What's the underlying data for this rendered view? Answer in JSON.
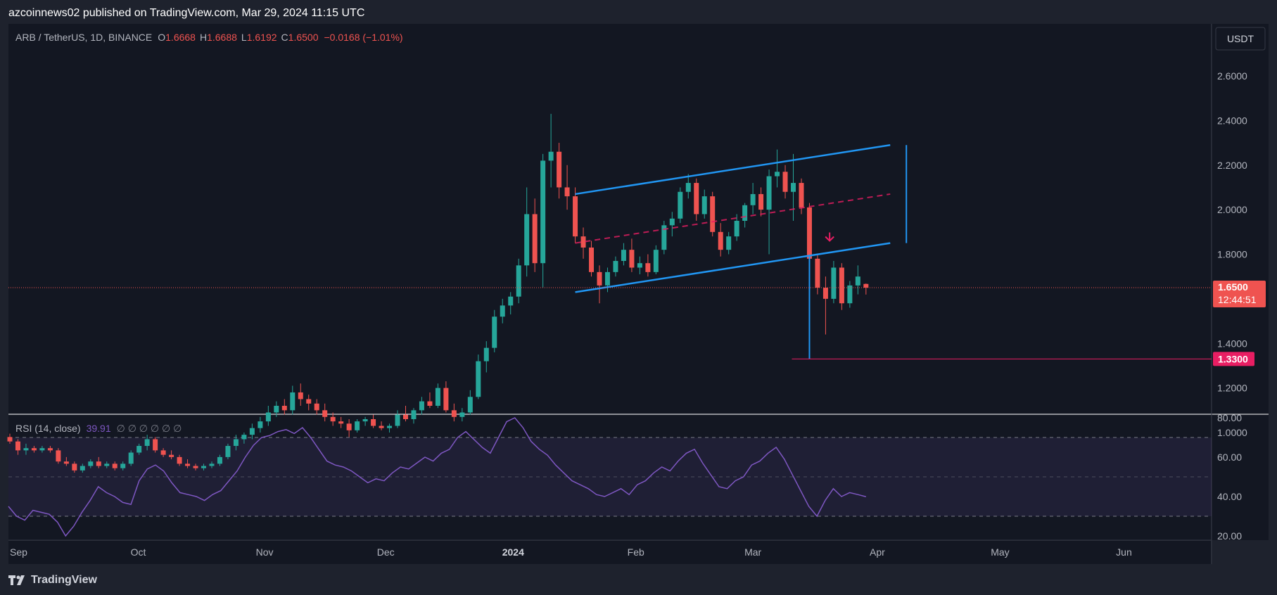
{
  "publisher_line": "azcoinnews02 published on TradingView.com, Mar 29, 2024 11:15 UTC",
  "footer_brand": "TradingView",
  "currency_button": "USDT",
  "legend": {
    "symbol": "ARB / TetherUS, 1D, BINANCE",
    "o_label": "O",
    "o_value": "1.6668",
    "h_label": "H",
    "h_value": "1.6688",
    "l_label": "L",
    "l_value": "1.6192",
    "c_label": "C",
    "c_value": "1.6500",
    "change": "−0.0168 (−1.01%)"
  },
  "price_badge": {
    "price": "1.6500",
    "countdown": "12:44:51"
  },
  "target_badge": "1.3300",
  "rsi_legend": {
    "label": "RSI (14, close)",
    "value": "39.91",
    "placeholders": "∅  ∅  ∅  ∅  ∅  ∅"
  },
  "colors": {
    "background": "#131722",
    "frame": "#1e222d",
    "up": "#26a69a",
    "down": "#ef5350",
    "channel": "#2196f3",
    "mid_line": "#e91e63",
    "target": "#e91e63",
    "rsi_line": "#7e57c2",
    "rsi_band": "#7e57c2"
  },
  "chart_data": [
    {
      "type": "candlestick",
      "title": "ARB / TetherUS, 1D, BINANCE",
      "x_ticks": [
        "Sep",
        "Oct",
        "Nov",
        "Dec",
        "2024",
        "Feb",
        "Mar",
        "Apr",
        "May",
        "Jun"
      ],
      "y_ticks": [
        "2.6000",
        "2.4000",
        "2.2000",
        "2.0000",
        "1.8000",
        "1.4000",
        "1.2000",
        "1.0000"
      ],
      "ylim": [
        0.85,
        2.72
      ],
      "current_price": 1.65,
      "ohlc": [
        {
          "date": "2023-08-30",
          "o": 0.98,
          "h": 0.995,
          "l": 0.95,
          "c": 0.96
        },
        {
          "date": "2023-09-01",
          "o": 0.96,
          "h": 0.97,
          "l": 0.9,
          "c": 0.92
        },
        {
          "date": "2023-09-03",
          "o": 0.92,
          "h": 0.95,
          "l": 0.9,
          "c": 0.93
        },
        {
          "date": "2023-09-05",
          "o": 0.93,
          "h": 0.94,
          "l": 0.91,
          "c": 0.92
        },
        {
          "date": "2023-09-07",
          "o": 0.92,
          "h": 0.94,
          "l": 0.91,
          "c": 0.93
        },
        {
          "date": "2023-09-09",
          "o": 0.93,
          "h": 0.94,
          "l": 0.91,
          "c": 0.92
        },
        {
          "date": "2023-09-11",
          "o": 0.92,
          "h": 0.93,
          "l": 0.86,
          "c": 0.87
        },
        {
          "date": "2023-09-13",
          "o": 0.87,
          "h": 0.89,
          "l": 0.85,
          "c": 0.86
        },
        {
          "date": "2023-09-15",
          "o": 0.86,
          "h": 0.87,
          "l": 0.82,
          "c": 0.83
        },
        {
          "date": "2023-09-17",
          "o": 0.83,
          "h": 0.86,
          "l": 0.82,
          "c": 0.85
        },
        {
          "date": "2023-09-19",
          "o": 0.85,
          "h": 0.88,
          "l": 0.84,
          "c": 0.87
        },
        {
          "date": "2023-09-21",
          "o": 0.87,
          "h": 0.89,
          "l": 0.84,
          "c": 0.85
        },
        {
          "date": "2023-09-23",
          "o": 0.85,
          "h": 0.87,
          "l": 0.84,
          "c": 0.86
        },
        {
          "date": "2023-09-25",
          "o": 0.86,
          "h": 0.87,
          "l": 0.83,
          "c": 0.84
        },
        {
          "date": "2023-09-27",
          "o": 0.84,
          "h": 0.87,
          "l": 0.83,
          "c": 0.86
        },
        {
          "date": "2023-09-29",
          "o": 0.86,
          "h": 0.92,
          "l": 0.85,
          "c": 0.91
        },
        {
          "date": "2023-10-01",
          "o": 0.91,
          "h": 0.95,
          "l": 0.9,
          "c": 0.94
        },
        {
          "date": "2023-10-03",
          "o": 0.94,
          "h": 0.99,
          "l": 0.92,
          "c": 0.97
        },
        {
          "date": "2023-10-05",
          "o": 0.97,
          "h": 0.98,
          "l": 0.91,
          "c": 0.92
        },
        {
          "date": "2023-10-07",
          "o": 0.92,
          "h": 0.93,
          "l": 0.89,
          "c": 0.9
        },
        {
          "date": "2023-10-09",
          "o": 0.9,
          "h": 0.92,
          "l": 0.88,
          "c": 0.89
        },
        {
          "date": "2023-10-11",
          "o": 0.89,
          "h": 0.9,
          "l": 0.85,
          "c": 0.86
        },
        {
          "date": "2023-10-13",
          "o": 0.86,
          "h": 0.88,
          "l": 0.84,
          "c": 0.85
        },
        {
          "date": "2023-10-15",
          "o": 0.85,
          "h": 0.86,
          "l": 0.83,
          "c": 0.84
        },
        {
          "date": "2023-10-17",
          "o": 0.84,
          "h": 0.86,
          "l": 0.83,
          "c": 0.85
        },
        {
          "date": "2023-10-19",
          "o": 0.85,
          "h": 0.87,
          "l": 0.84,
          "c": 0.86
        },
        {
          "date": "2023-10-21",
          "o": 0.86,
          "h": 0.9,
          "l": 0.85,
          "c": 0.89
        },
        {
          "date": "2023-10-23",
          "o": 0.89,
          "h": 0.95,
          "l": 0.88,
          "c": 0.94
        },
        {
          "date": "2023-10-25",
          "o": 0.94,
          "h": 0.99,
          "l": 0.92,
          "c": 0.97
        },
        {
          "date": "2023-10-27",
          "o": 0.97,
          "h": 1.0,
          "l": 0.95,
          "c": 0.99
        },
        {
          "date": "2023-10-29",
          "o": 0.99,
          "h": 1.04,
          "l": 0.97,
          "c": 1.02
        },
        {
          "date": "2023-10-31",
          "o": 1.02,
          "h": 1.07,
          "l": 1.0,
          "c": 1.05
        },
        {
          "date": "2023-11-02",
          "o": 1.05,
          "h": 1.12,
          "l": 1.03,
          "c": 1.09
        },
        {
          "date": "2023-11-04",
          "o": 1.09,
          "h": 1.14,
          "l": 1.07,
          "c": 1.12
        },
        {
          "date": "2023-11-06",
          "o": 1.12,
          "h": 1.15,
          "l": 1.08,
          "c": 1.1
        },
        {
          "date": "2023-11-08",
          "o": 1.1,
          "h": 1.21,
          "l": 1.08,
          "c": 1.18
        },
        {
          "date": "2023-11-10",
          "o": 1.18,
          "h": 1.22,
          "l": 1.12,
          "c": 1.15
        },
        {
          "date": "2023-11-12",
          "o": 1.15,
          "h": 1.17,
          "l": 1.1,
          "c": 1.13
        },
        {
          "date": "2023-11-14",
          "o": 1.13,
          "h": 1.15,
          "l": 1.08,
          "c": 1.1
        },
        {
          "date": "2023-11-16",
          "o": 1.1,
          "h": 1.13,
          "l": 1.05,
          "c": 1.07
        },
        {
          "date": "2023-11-18",
          "o": 1.07,
          "h": 1.09,
          "l": 1.03,
          "c": 1.05
        },
        {
          "date": "2023-11-20",
          "o": 1.05,
          "h": 1.07,
          "l": 1.02,
          "c": 1.04
        },
        {
          "date": "2023-11-22",
          "o": 1.04,
          "h": 1.06,
          "l": 0.98,
          "c": 1.01
        },
        {
          "date": "2023-11-24",
          "o": 1.01,
          "h": 1.06,
          "l": 1.0,
          "c": 1.05
        },
        {
          "date": "2023-11-26",
          "o": 1.05,
          "h": 1.07,
          "l": 1.03,
          "c": 1.06
        },
        {
          "date": "2023-11-28",
          "o": 1.06,
          "h": 1.08,
          "l": 1.02,
          "c": 1.03
        },
        {
          "date": "2023-11-30",
          "o": 1.03,
          "h": 1.05,
          "l": 1.01,
          "c": 1.02
        },
        {
          "date": "2023-12-02",
          "o": 1.02,
          "h": 1.04,
          "l": 1.0,
          "c": 1.03
        },
        {
          "date": "2023-12-04",
          "o": 1.03,
          "h": 1.1,
          "l": 1.02,
          "c": 1.08
        },
        {
          "date": "2023-12-06",
          "o": 1.08,
          "h": 1.12,
          "l": 1.05,
          "c": 1.06
        },
        {
          "date": "2023-12-08",
          "o": 1.06,
          "h": 1.11,
          "l": 1.04,
          "c": 1.1
        },
        {
          "date": "2023-12-10",
          "o": 1.1,
          "h": 1.16,
          "l": 1.08,
          "c": 1.14
        },
        {
          "date": "2023-12-12",
          "o": 1.14,
          "h": 1.18,
          "l": 1.11,
          "c": 1.12
        },
        {
          "date": "2023-12-14",
          "o": 1.12,
          "h": 1.22,
          "l": 1.11,
          "c": 1.2
        },
        {
          "date": "2023-12-16",
          "o": 1.2,
          "h": 1.23,
          "l": 1.09,
          "c": 1.1
        },
        {
          "date": "2023-12-18",
          "o": 1.1,
          "h": 1.13,
          "l": 1.05,
          "c": 1.07
        },
        {
          "date": "2023-12-20",
          "o": 1.07,
          "h": 1.11,
          "l": 1.05,
          "c": 1.09
        },
        {
          "date": "2023-12-22",
          "o": 1.09,
          "h": 1.19,
          "l": 1.08,
          "c": 1.16
        },
        {
          "date": "2023-12-24",
          "o": 1.16,
          "h": 1.35,
          "l": 1.15,
          "c": 1.32
        },
        {
          "date": "2023-12-26",
          "o": 1.32,
          "h": 1.41,
          "l": 1.27,
          "c": 1.38
        },
        {
          "date": "2023-12-28",
          "o": 1.38,
          "h": 1.55,
          "l": 1.36,
          "c": 1.52
        },
        {
          "date": "2023-12-30",
          "o": 1.52,
          "h": 1.6,
          "l": 1.49,
          "c": 1.57
        },
        {
          "date": "2024-01-01",
          "o": 1.57,
          "h": 1.63,
          "l": 1.53,
          "c": 1.61
        },
        {
          "date": "2024-01-03",
          "o": 1.61,
          "h": 1.78,
          "l": 1.58,
          "c": 1.75
        },
        {
          "date": "2024-01-05",
          "o": 1.75,
          "h": 2.1,
          "l": 1.7,
          "c": 1.98
        },
        {
          "date": "2024-01-07",
          "o": 1.98,
          "h": 2.05,
          "l": 1.72,
          "c": 1.76
        },
        {
          "date": "2024-01-09",
          "o": 1.76,
          "h": 2.25,
          "l": 1.65,
          "c": 2.22
        },
        {
          "date": "2024-01-11",
          "o": 2.22,
          "h": 2.43,
          "l": 2.1,
          "c": 2.26
        },
        {
          "date": "2024-01-13",
          "o": 2.26,
          "h": 2.3,
          "l": 2.05,
          "c": 2.1
        },
        {
          "date": "2024-01-15",
          "o": 2.1,
          "h": 2.2,
          "l": 2.0,
          "c": 2.06
        },
        {
          "date": "2024-01-17",
          "o": 2.06,
          "h": 2.1,
          "l": 1.85,
          "c": 1.88
        },
        {
          "date": "2024-01-19",
          "o": 1.88,
          "h": 1.92,
          "l": 1.78,
          "c": 1.83
        },
        {
          "date": "2024-01-21",
          "o": 1.83,
          "h": 1.86,
          "l": 1.7,
          "c": 1.72
        },
        {
          "date": "2024-01-23",
          "o": 1.72,
          "h": 1.75,
          "l": 1.58,
          "c": 1.66
        },
        {
          "date": "2024-01-25",
          "o": 1.66,
          "h": 1.74,
          "l": 1.63,
          "c": 1.72
        },
        {
          "date": "2024-01-27",
          "o": 1.72,
          "h": 1.79,
          "l": 1.7,
          "c": 1.77
        },
        {
          "date": "2024-01-29",
          "o": 1.77,
          "h": 1.85,
          "l": 1.75,
          "c": 1.82
        },
        {
          "date": "2024-01-31",
          "o": 1.82,
          "h": 1.87,
          "l": 1.72,
          "c": 1.74
        },
        {
          "date": "2024-02-02",
          "o": 1.74,
          "h": 1.79,
          "l": 1.71,
          "c": 1.76
        },
        {
          "date": "2024-02-04",
          "o": 1.76,
          "h": 1.8,
          "l": 1.7,
          "c": 1.72
        },
        {
          "date": "2024-02-06",
          "o": 1.72,
          "h": 1.84,
          "l": 1.71,
          "c": 1.82
        },
        {
          "date": "2024-02-08",
          "o": 1.82,
          "h": 1.95,
          "l": 1.8,
          "c": 1.93
        },
        {
          "date": "2024-02-10",
          "o": 1.93,
          "h": 1.99,
          "l": 1.88,
          "c": 1.96
        },
        {
          "date": "2024-02-12",
          "o": 1.96,
          "h": 2.1,
          "l": 1.94,
          "c": 2.08
        },
        {
          "date": "2024-02-14",
          "o": 2.08,
          "h": 2.16,
          "l": 2.05,
          "c": 2.12
        },
        {
          "date": "2024-02-16",
          "o": 2.12,
          "h": 2.14,
          "l": 1.95,
          "c": 1.98
        },
        {
          "date": "2024-02-18",
          "o": 1.98,
          "h": 2.09,
          "l": 1.96,
          "c": 2.06
        },
        {
          "date": "2024-02-20",
          "o": 2.06,
          "h": 2.08,
          "l": 1.88,
          "c": 1.9
        },
        {
          "date": "2024-02-22",
          "o": 1.9,
          "h": 1.94,
          "l": 1.79,
          "c": 1.82
        },
        {
          "date": "2024-02-24",
          "o": 1.82,
          "h": 1.9,
          "l": 1.8,
          "c": 1.88
        },
        {
          "date": "2024-02-26",
          "o": 1.88,
          "h": 1.98,
          "l": 1.86,
          "c": 1.95
        },
        {
          "date": "2024-02-28",
          "o": 1.95,
          "h": 2.03,
          "l": 1.92,
          "c": 2.02
        },
        {
          "date": "2024-03-01",
          "o": 2.02,
          "h": 2.12,
          "l": 1.98,
          "c": 2.07
        },
        {
          "date": "2024-03-03",
          "o": 2.07,
          "h": 2.1,
          "l": 1.97,
          "c": 2.0
        },
        {
          "date": "2024-03-05",
          "o": 2.0,
          "h": 2.18,
          "l": 1.8,
          "c": 2.15
        },
        {
          "date": "2024-03-07",
          "o": 2.15,
          "h": 2.27,
          "l": 2.1,
          "c": 2.17
        },
        {
          "date": "2024-03-09",
          "o": 2.17,
          "h": 2.2,
          "l": 2.05,
          "c": 2.08
        },
        {
          "date": "2024-03-11",
          "o": 2.08,
          "h": 2.25,
          "l": 1.95,
          "c": 2.12
        },
        {
          "date": "2024-03-13",
          "o": 2.12,
          "h": 2.14,
          "l": 1.98,
          "c": 2.01
        },
        {
          "date": "2024-03-15",
          "o": 2.01,
          "h": 2.03,
          "l": 1.75,
          "c": 1.78
        },
        {
          "date": "2024-03-17",
          "o": 1.78,
          "h": 1.8,
          "l": 1.62,
          "c": 1.65
        },
        {
          "date": "2024-03-19",
          "o": 1.65,
          "h": 1.7,
          "l": 1.44,
          "c": 1.6
        },
        {
          "date": "2024-03-21",
          "o": 1.6,
          "h": 1.77,
          "l": 1.58,
          "c": 1.74
        },
        {
          "date": "2024-03-23",
          "o": 1.74,
          "h": 1.76,
          "l": 1.55,
          "c": 1.58
        },
        {
          "date": "2024-03-25",
          "o": 1.58,
          "h": 1.68,
          "l": 1.56,
          "c": 1.66
        },
        {
          "date": "2024-03-27",
          "o": 1.66,
          "h": 1.75,
          "l": 1.62,
          "c": 1.7
        },
        {
          "date": "2024-03-29",
          "o": 1.6668,
          "h": 1.6688,
          "l": 1.6192,
          "c": 1.65
        }
      ],
      "annotations": {
        "channel_upper": [
          {
            "date": "2024-01-17",
            "price": 2.07
          },
          {
            "date": "2024-04-04",
            "price": 2.29
          }
        ],
        "channel_lower": [
          {
            "date": "2024-01-17",
            "price": 1.63
          },
          {
            "date": "2024-04-04",
            "price": 1.85
          }
        ],
        "channel_mid": [
          {
            "date": "2024-01-17",
            "price": 1.85
          },
          {
            "date": "2024-04-04",
            "price": 2.07
          }
        ],
        "measure_line_right": {
          "date": "2024-04-08",
          "from": 2.29,
          "to": 1.85
        },
        "measure_line_drop": {
          "date": "2024-03-15",
          "from": 1.79,
          "to": 1.33
        },
        "target_level": 1.33,
        "down_arrow": {
          "date": "2024-03-20",
          "price": 1.86
        }
      }
    },
    {
      "type": "line",
      "title": "RSI (14, close)",
      "y_ticks": [
        "80.00",
        "60.00",
        "40.00",
        "20.00"
      ],
      "ylim": [
        18,
        82
      ],
      "bands": {
        "upper": 70,
        "middle": 50,
        "lower": 30
      },
      "current_value": 39.91,
      "series": [
        {
          "values": [
            35,
            30,
            28,
            33,
            32,
            31,
            27,
            20,
            25,
            32,
            38,
            45,
            42,
            40,
            37,
            36,
            48,
            54,
            56,
            53,
            47,
            42,
            41,
            40,
            38,
            41,
            43,
            48,
            53,
            60,
            66,
            70,
            71,
            73,
            74,
            72,
            75,
            70,
            64,
            58,
            56,
            55,
            53,
            50,
            47,
            49,
            48,
            52,
            55,
            54,
            57,
            60,
            58,
            62,
            64,
            70,
            73,
            69,
            65,
            62,
            70,
            78,
            80,
            75,
            68,
            64,
            61,
            56,
            52,
            48,
            46,
            44,
            41,
            40,
            42,
            44,
            41,
            46,
            48,
            52,
            55,
            53,
            58,
            62,
            64,
            57,
            51,
            45,
            44,
            48,
            50,
            56,
            58,
            62,
            65,
            59,
            51,
            43,
            35,
            30,
            38,
            44,
            40,
            42,
            41,
            39.91
          ]
        }
      ]
    }
  ]
}
